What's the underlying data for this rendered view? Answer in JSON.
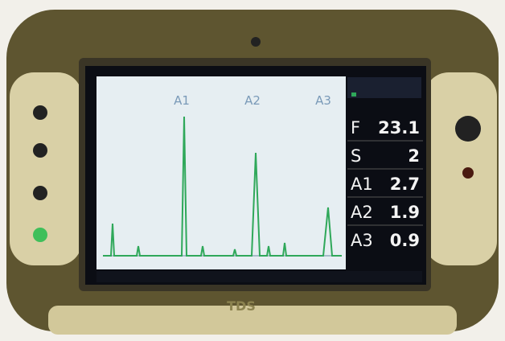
{
  "device": {
    "brand": "TDS"
  },
  "screen": {
    "peak_labels": [
      "A1",
      "A2",
      "A3"
    ],
    "readings": [
      {
        "label": "F",
        "value": "23.1"
      },
      {
        "label": "S",
        "value": "2"
      },
      {
        "label": "A1",
        "value": "2.7"
      },
      {
        "label": "A2",
        "value": "1.9"
      },
      {
        "label": "A3",
        "value": "0.9"
      }
    ]
  }
}
